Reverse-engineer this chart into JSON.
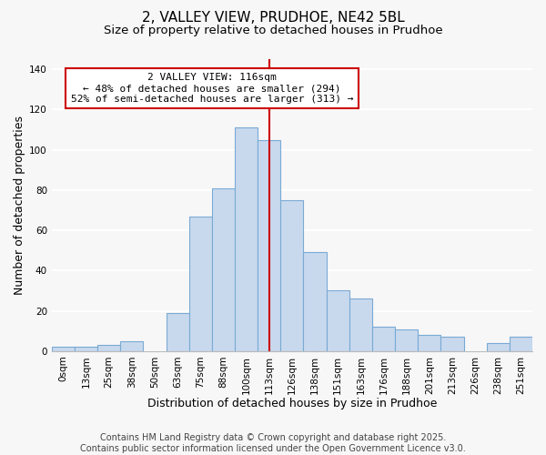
{
  "title": "2, VALLEY VIEW, PRUDHOE, NE42 5BL",
  "subtitle": "Size of property relative to detached houses in Prudhoe",
  "xlabel": "Distribution of detached houses by size in Prudhoe",
  "ylabel": "Number of detached properties",
  "bar_labels": [
    "0sqm",
    "13sqm",
    "25sqm",
    "38sqm",
    "50sqm",
    "63sqm",
    "75sqm",
    "88sqm",
    "100sqm",
    "113sqm",
    "126sqm",
    "138sqm",
    "151sqm",
    "163sqm",
    "176sqm",
    "188sqm",
    "201sqm",
    "213sqm",
    "226sqm",
    "238sqm",
    "251sqm"
  ],
  "bar_values": [
    2,
    2,
    3,
    5,
    0,
    19,
    67,
    81,
    111,
    105,
    75,
    49,
    30,
    26,
    12,
    11,
    8,
    7,
    0,
    4,
    7
  ],
  "bar_color": "#c8d9ee",
  "bar_edge_color": "#7aaad4",
  "vline_index": 9,
  "vline_color": "#cc0000",
  "annotation_title": "2 VALLEY VIEW: 116sqm",
  "annotation_line1": "← 48% of detached houses are smaller (294)",
  "annotation_line2": "52% of semi-detached houses are larger (313) →",
  "annotation_box_color": "#cc0000",
  "ylim": [
    0,
    145
  ],
  "yticks": [
    0,
    20,
    40,
    60,
    80,
    100,
    120,
    140
  ],
  "footer1": "Contains HM Land Registry data © Crown copyright and database right 2025.",
  "footer2": "Contains public sector information licensed under the Open Government Licence v3.0.",
  "background_color": "#f7f7f7",
  "grid_color": "#ffffff",
  "title_fontsize": 11,
  "subtitle_fontsize": 9.5,
  "axis_label_fontsize": 9,
  "tick_fontsize": 7.5,
  "annotation_fontsize": 8,
  "footer_fontsize": 7
}
